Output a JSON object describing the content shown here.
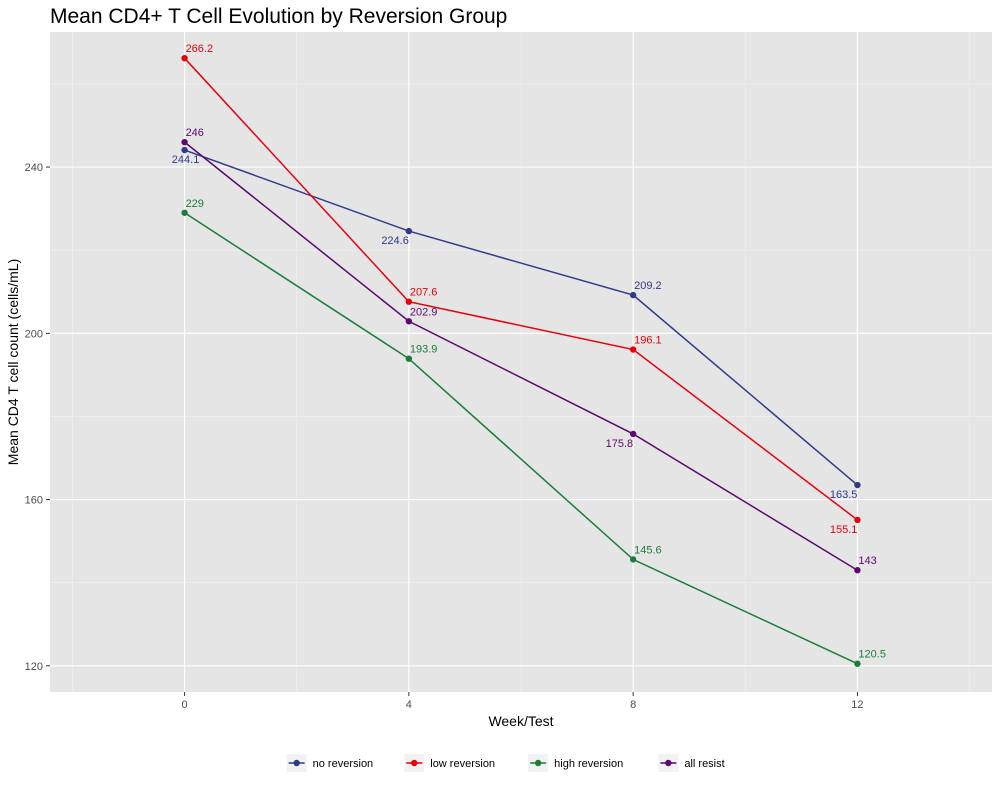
{
  "chart_data": {
    "type": "line",
    "title": "Mean CD4+ T Cell Evolution by Reversion Group",
    "xlabel": "Week/Test",
    "ylabel": "Mean CD4 T cell count (cells/mL)",
    "x": [
      0,
      4,
      8,
      12
    ],
    "x_ticks": [
      "0",
      "4",
      "8",
      "12"
    ],
    "y_ticks": [
      "120",
      "160",
      "200",
      "240"
    ],
    "xlim": [
      -2.4,
      14.4
    ],
    "ylim": [
      113.7,
      272.5
    ],
    "grid": true,
    "legend_position": "bottom",
    "series": [
      {
        "name": "no reversion",
        "color": "#2e3b8a",
        "values": [
          244.1,
          224.6,
          209.2,
          163.5
        ],
        "labels": [
          "244.1",
          "224.6",
          "209.2",
          "163.5"
        ],
        "label_positions": [
          "below",
          "below-left",
          "above",
          "below-left"
        ]
      },
      {
        "name": "low reversion",
        "color": "#e8000b",
        "values": [
          266.2,
          207.6,
          196.1,
          155.1
        ],
        "labels": [
          "266.2",
          "207.6",
          "196.1",
          "155.1"
        ],
        "label_positions": [
          "above",
          "above",
          "above",
          "below-left"
        ]
      },
      {
        "name": "high reversion",
        "color": "#1b7d3a",
        "values": [
          229,
          193.9,
          145.6,
          120.5
        ],
        "labels": [
          "229",
          "193.9",
          "145.6",
          "120.5"
        ],
        "label_positions": [
          "above",
          "above",
          "above",
          "above"
        ]
      },
      {
        "name": "all resist",
        "color": "#5a0a6e",
        "values": [
          246,
          202.9,
          175.8,
          143
        ],
        "labels": [
          "246",
          "202.9",
          "175.8",
          "143"
        ],
        "label_positions": [
          "above",
          "above",
          "below-left",
          "above"
        ]
      }
    ]
  }
}
